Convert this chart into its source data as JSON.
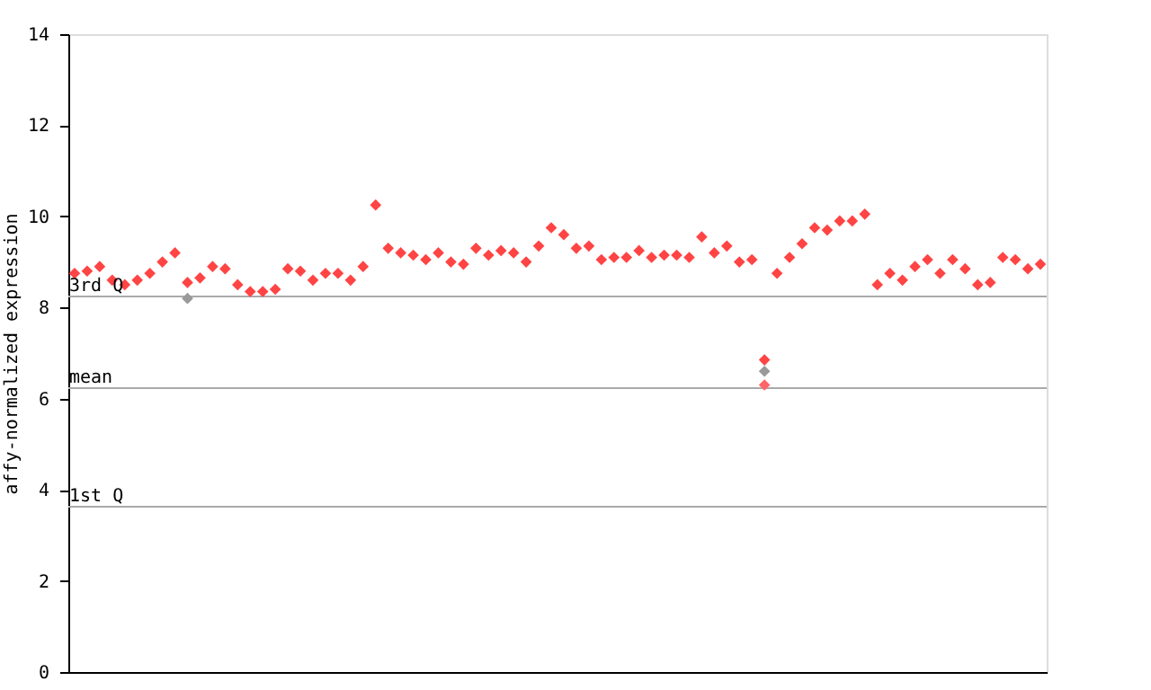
{
  "chart_data": {
    "type": "scatter",
    "ylabel": "affy-normalized expression",
    "categories": [
      null,
      null,
      null,
      null,
      null,
      null,
      null,
      null,
      null,
      null,
      null,
      null,
      null,
      null,
      null,
      null,
      null,
      null,
      null,
      null,
      null,
      null,
      null,
      null,
      null,
      null,
      null,
      null,
      null,
      null,
      null,
      null,
      null,
      null,
      null,
      null,
      null,
      null,
      null,
      null,
      null,
      null,
      null,
      null,
      null,
      null,
      null,
      null,
      null,
      null,
      null,
      null,
      null,
      null,
      null,
      null,
      null,
      null,
      null,
      null,
      null,
      null,
      null,
      null,
      null,
      null,
      null,
      null,
      null,
      null,
      null,
      null,
      null,
      null,
      null,
      null,
      null,
      null
    ],
    "series": [
      {
        "color": "#ff4444",
        "values": [
          8.75,
          8.8,
          8.9,
          8.6,
          8.5,
          8.6,
          8.75,
          9.0,
          9.2,
          8.55,
          8.65,
          8.9,
          8.85,
          8.5,
          8.35,
          8.35,
          8.4,
          8.85,
          8.8,
          8.6,
          8.75,
          8.75,
          8.6,
          8.9,
          10.25,
          9.3,
          9.2,
          9.15,
          9.05,
          9.2,
          9.0,
          8.95,
          9.3,
          9.15,
          9.25,
          9.2,
          9.0,
          9.35,
          9.75,
          9.6,
          9.3,
          9.35,
          9.05,
          9.1,
          9.1,
          9.25,
          9.1,
          9.15,
          9.15,
          9.1,
          9.55,
          9.2,
          9.35,
          9.0,
          9.05,
          6.85,
          8.75,
          9.1,
          9.4,
          9.75,
          9.7,
          9.9,
          9.9,
          10.05,
          8.5,
          8.75,
          8.6,
          8.9,
          9.05,
          8.75,
          9.05,
          8.85,
          8.5,
          8.55,
          9.1,
          9.05,
          8.85,
          8.95
        ]
      },
      {
        "color": "#999999",
        "values": [
          null,
          null,
          null,
          null,
          null,
          null,
          null,
          null,
          null,
          8.2,
          null,
          null,
          null,
          null,
          null,
          null,
          null,
          null,
          null,
          null,
          null,
          null,
          null,
          null,
          null,
          null,
          null,
          null,
          null,
          null,
          null,
          null,
          null,
          null,
          null,
          null,
          null,
          null,
          null,
          null,
          null,
          null,
          null,
          null,
          null,
          null,
          null,
          null,
          null,
          null,
          null,
          null,
          null,
          null,
          null,
          6.6,
          null,
          null,
          null,
          null,
          null,
          null,
          null,
          null,
          null,
          null,
          null,
          null,
          null,
          null,
          null,
          null,
          null,
          null,
          null,
          null,
          null,
          null
        ]
      },
      {
        "color": "#ff6666",
        "values": [
          null,
          null,
          null,
          null,
          null,
          null,
          null,
          null,
          null,
          null,
          null,
          null,
          null,
          null,
          null,
          null,
          null,
          null,
          null,
          null,
          null,
          null,
          null,
          null,
          null,
          null,
          null,
          null,
          null,
          null,
          null,
          null,
          null,
          null,
          null,
          null,
          null,
          null,
          null,
          null,
          null,
          null,
          null,
          null,
          null,
          null,
          null,
          null,
          null,
          null,
          null,
          null,
          null,
          null,
          null,
          6.3,
          null,
          null,
          null,
          null,
          null,
          null,
          null,
          null,
          null,
          null,
          null,
          null,
          null,
          null,
          null,
          null,
          null,
          null,
          null,
          null,
          null,
          null
        ]
      }
    ],
    "ylim": [
      0,
      14
    ],
    "yticks": [
      0,
      2,
      4,
      6,
      8,
      10,
      12,
      14
    ],
    "marker": "diamond",
    "ref_lines": [
      {
        "axis": "y",
        "value": 8.24,
        "label": "3rd Q",
        "color": "#aaaaaa"
      },
      {
        "axis": "y",
        "value": 6.23,
        "label": "mean",
        "color": "#aaaaaa"
      },
      {
        "axis": "y",
        "value": 3.63,
        "label": "1st Q",
        "color": "#aaaaaa"
      }
    ]
  }
}
